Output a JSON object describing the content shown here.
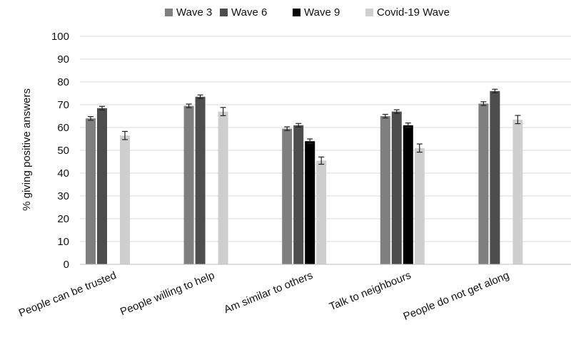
{
  "chart_data": {
    "type": "bar",
    "title": "",
    "xlabel": "",
    "ylabel": "% giving positive answers",
    "ylim": [
      0,
      100
    ],
    "yticks": [
      0,
      10,
      20,
      30,
      40,
      50,
      60,
      70,
      80,
      90,
      100
    ],
    "grid": true,
    "legend_position": "top-center",
    "categories": [
      "People can be trusted",
      "People willing to help",
      "Am similar to others",
      "Talk to neighbours",
      "People do not get along"
    ],
    "series": [
      {
        "name": "Wave 3",
        "color": "#7f7f7f",
        "values": [
          64,
          69.5,
          59.5,
          65,
          70.5
        ],
        "errors": [
          0.8,
          0.8,
          0.8,
          0.8,
          0.8
        ]
      },
      {
        "name": "Wave 6",
        "color": "#4d4d4d",
        "values": [
          68.5,
          73.5,
          61,
          67,
          76
        ],
        "errors": [
          0.8,
          0.8,
          0.8,
          0.8,
          0.8
        ]
      },
      {
        "name": "Wave 9",
        "color": "#000000",
        "values": [
          null,
          null,
          54,
          61,
          null
        ],
        "errors": [
          null,
          null,
          1,
          1,
          null
        ]
      },
      {
        "name": "Covid-19 Wave",
        "color": "#cfcfcf",
        "values": [
          56.5,
          67,
          45.5,
          51,
          63.5
        ],
        "errors": [
          1.8,
          1.8,
          1.6,
          1.8,
          1.8
        ]
      }
    ]
  }
}
